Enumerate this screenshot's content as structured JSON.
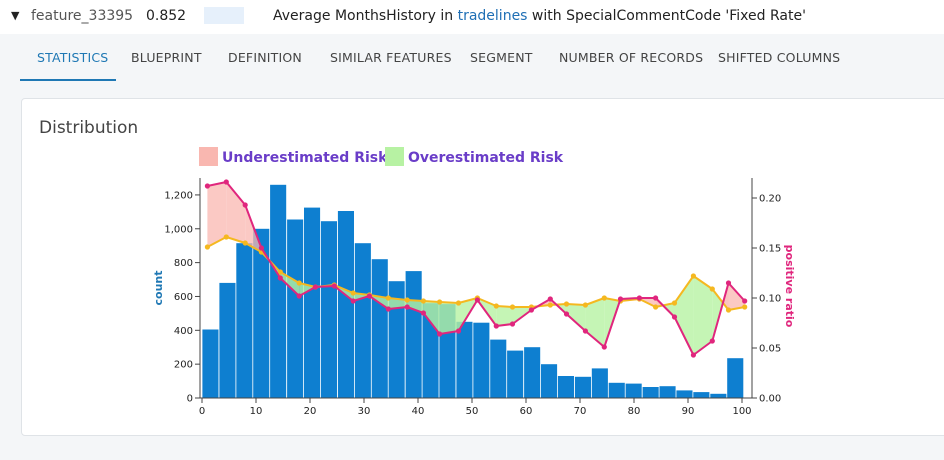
{
  "header": {
    "caret": "▼",
    "feature_name": "feature_33395",
    "score": "0.852",
    "description_prefix": "Average MonthsHistory in ",
    "description_link": "tradelines",
    "description_suffix": " with SpecialCommentCode 'Fixed Rate'"
  },
  "tabs": [
    "STATISTICS",
    "BLUEPRINT",
    "DEFINITION",
    "SIMILAR FEATURES",
    "SEGMENT",
    "NUMBER OF RECORDS",
    "SHIFTED COLUMNS"
  ],
  "active_tab": "STATISTICS",
  "card": {
    "title": "Distribution"
  },
  "colors": {
    "bar": "#0e7fd0",
    "expected": "#f5b820",
    "actual": "#e0267d",
    "under": "#f9b7b0",
    "over": "#b7f2a3",
    "accent": "#1f78b4",
    "legend_text": "#6a3dc8"
  },
  "chart_data": {
    "type": "bar",
    "legend": [
      "Underestimated Risk",
      "Overestimated Risk"
    ],
    "left_axis": {
      "label": "count",
      "ticks": [
        "0",
        "200",
        "400",
        "600",
        "800",
        "1,000",
        "1,200"
      ],
      "range": [
        0,
        1300
      ]
    },
    "right_axis": {
      "label": "positive ratio",
      "ticks": [
        "0.00",
        "0.05",
        "0.10",
        "0.15",
        "0.20"
      ],
      "range": [
        0,
        0.22
      ]
    },
    "x_axis": {
      "ticks": [
        "0",
        "10",
        "20",
        "30",
        "40",
        "50",
        "60",
        "70",
        "80",
        "90",
        "100"
      ],
      "range": [
        0,
        100
      ]
    },
    "bars": [
      {
        "x": 1.5,
        "count": 405
      },
      {
        "x": 4.5,
        "count": 680
      },
      {
        "x": 7.5,
        "count": 915
      },
      {
        "x": 10.5,
        "count": 1000
      },
      {
        "x": 13.5,
        "count": 1260
      },
      {
        "x": 16.5,
        "count": 1055
      },
      {
        "x": 19.5,
        "count": 1125
      },
      {
        "x": 22.5,
        "count": 1045
      },
      {
        "x": 25.5,
        "count": 1105
      },
      {
        "x": 28.5,
        "count": 915
      },
      {
        "x": 31.5,
        "count": 820
      },
      {
        "x": 34.5,
        "count": 690
      },
      {
        "x": 37.5,
        "count": 750
      },
      {
        "x": 40.5,
        "count": 560
      },
      {
        "x": 43.5,
        "count": 555
      },
      {
        "x": 46.5,
        "count": 450
      },
      {
        "x": 49.5,
        "count": 445
      },
      {
        "x": 52.5,
        "count": 345
      },
      {
        "x": 55.5,
        "count": 280
      },
      {
        "x": 58.5,
        "count": 300
      },
      {
        "x": 61.5,
        "count": 200
      },
      {
        "x": 64.5,
        "count": 130
      },
      {
        "x": 67.5,
        "count": 125
      },
      {
        "x": 70.5,
        "count": 175
      },
      {
        "x": 73.5,
        "count": 90
      },
      {
        "x": 76.5,
        "count": 85
      },
      {
        "x": 79.5,
        "count": 65
      },
      {
        "x": 82.5,
        "count": 70
      },
      {
        "x": 85.5,
        "count": 45
      },
      {
        "x": 88.5,
        "count": 35
      },
      {
        "x": 91.5,
        "count": 25
      },
      {
        "x": 94.5,
        "count": 235
      }
    ],
    "expected_ratio": [
      {
        "x": 1,
        "y": 0.151
      },
      {
        "x": 4.5,
        "y": 0.161
      },
      {
        "x": 8,
        "y": 0.155
      },
      {
        "x": 11,
        "y": 0.146
      },
      {
        "x": 14.5,
        "y": 0.126
      },
      {
        "x": 18,
        "y": 0.115
      },
      {
        "x": 21,
        "y": 0.111
      },
      {
        "x": 24.5,
        "y": 0.113
      },
      {
        "x": 28,
        "y": 0.105
      },
      {
        "x": 31,
        "y": 0.103
      },
      {
        "x": 34.5,
        "y": 0.1
      },
      {
        "x": 38,
        "y": 0.098
      },
      {
        "x": 41,
        "y": 0.097
      },
      {
        "x": 44,
        "y": 0.096
      },
      {
        "x": 47.5,
        "y": 0.095
      },
      {
        "x": 51,
        "y": 0.1
      },
      {
        "x": 54.5,
        "y": 0.092
      },
      {
        "x": 57.5,
        "y": 0.091
      },
      {
        "x": 61,
        "y": 0.091
      },
      {
        "x": 64.5,
        "y": 0.093
      },
      {
        "x": 67.5,
        "y": 0.094
      },
      {
        "x": 71,
        "y": 0.093
      },
      {
        "x": 74.5,
        "y": 0.1
      },
      {
        "x": 77.5,
        "y": 0.097
      },
      {
        "x": 81,
        "y": 0.099
      },
      {
        "x": 84,
        "y": 0.091
      },
      {
        "x": 87.5,
        "y": 0.095
      },
      {
        "x": 91,
        "y": 0.122
      },
      {
        "x": 94.5,
        "y": 0.109
      },
      {
        "x": 97.5,
        "y": 0.088
      },
      {
        "x": 100.5,
        "y": 0.091
      }
    ],
    "actual_ratio": [
      {
        "x": 1,
        "y": 0.212
      },
      {
        "x": 4.5,
        "y": 0.216
      },
      {
        "x": 8,
        "y": 0.193
      },
      {
        "x": 11,
        "y": 0.15
      },
      {
        "x": 14.5,
        "y": 0.12
      },
      {
        "x": 18,
        "y": 0.102
      },
      {
        "x": 21,
        "y": 0.111
      },
      {
        "x": 24.5,
        "y": 0.112
      },
      {
        "x": 28,
        "y": 0.097
      },
      {
        "x": 31,
        "y": 0.102
      },
      {
        "x": 34.5,
        "y": 0.089
      },
      {
        "x": 38,
        "y": 0.091
      },
      {
        "x": 41,
        "y": 0.085
      },
      {
        "x": 44,
        "y": 0.064
      },
      {
        "x": 47.5,
        "y": 0.067
      },
      {
        "x": 51,
        "y": 0.098
      },
      {
        "x": 54.5,
        "y": 0.072
      },
      {
        "x": 57.5,
        "y": 0.074
      },
      {
        "x": 61,
        "y": 0.088
      },
      {
        "x": 64.5,
        "y": 0.099
      },
      {
        "x": 67.5,
        "y": 0.084
      },
      {
        "x": 71,
        "y": 0.067
      },
      {
        "x": 74.5,
        "y": 0.051
      },
      {
        "x": 77.5,
        "y": 0.099
      },
      {
        "x": 81,
        "y": 0.1
      },
      {
        "x": 84,
        "y": 0.1
      },
      {
        "x": 87.5,
        "y": 0.081
      },
      {
        "x": 91,
        "y": 0.043
      },
      {
        "x": 94.5,
        "y": 0.057
      },
      {
        "x": 97.5,
        "y": 0.115
      },
      {
        "x": 100.5,
        "y": 0.097
      }
    ]
  }
}
